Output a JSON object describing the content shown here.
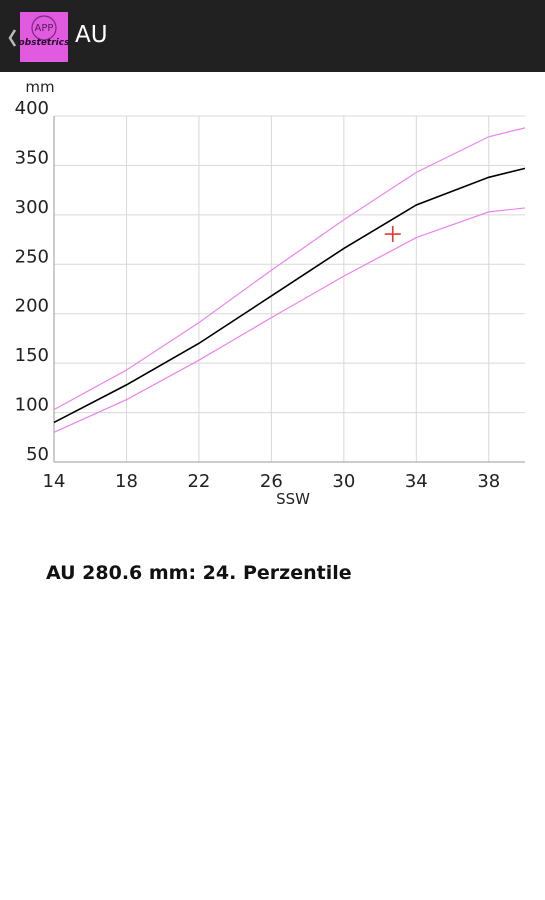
{
  "app_bar": {
    "title": "AU",
    "logo_top": "APP",
    "logo_bottom": "obstetrics"
  },
  "chart_data": {
    "type": "line",
    "ylabel": "mm",
    "xlabel": "SSW",
    "x": [
      14,
      18,
      22,
      26,
      30,
      34,
      38,
      40
    ],
    "series": [
      {
        "color": "#ee82ee",
        "values": [
          103,
          143,
          191,
          244,
          295,
          343,
          379,
          388
        ]
      },
      {
        "color": "#000000",
        "values": [
          90,
          128,
          170,
          218,
          266,
          310,
          338,
          347
        ]
      },
      {
        "color": "#ee82ee",
        "values": [
          80,
          113,
          153,
          196,
          238,
          277,
          303,
          307
        ]
      }
    ],
    "point": {
      "x": 32.7,
      "y": 280.6,
      "color": "#e53935"
    },
    "xlim": [
      14,
      40
    ],
    "xticks": [
      14,
      18,
      22,
      26,
      30,
      34,
      38
    ],
    "ylim": [
      50,
      400
    ],
    "yticks": [
      50,
      100,
      150,
      200,
      250,
      300,
      350,
      400
    ],
    "grid": true
  },
  "result": "AU 280.6 mm: 24. Perzentile"
}
